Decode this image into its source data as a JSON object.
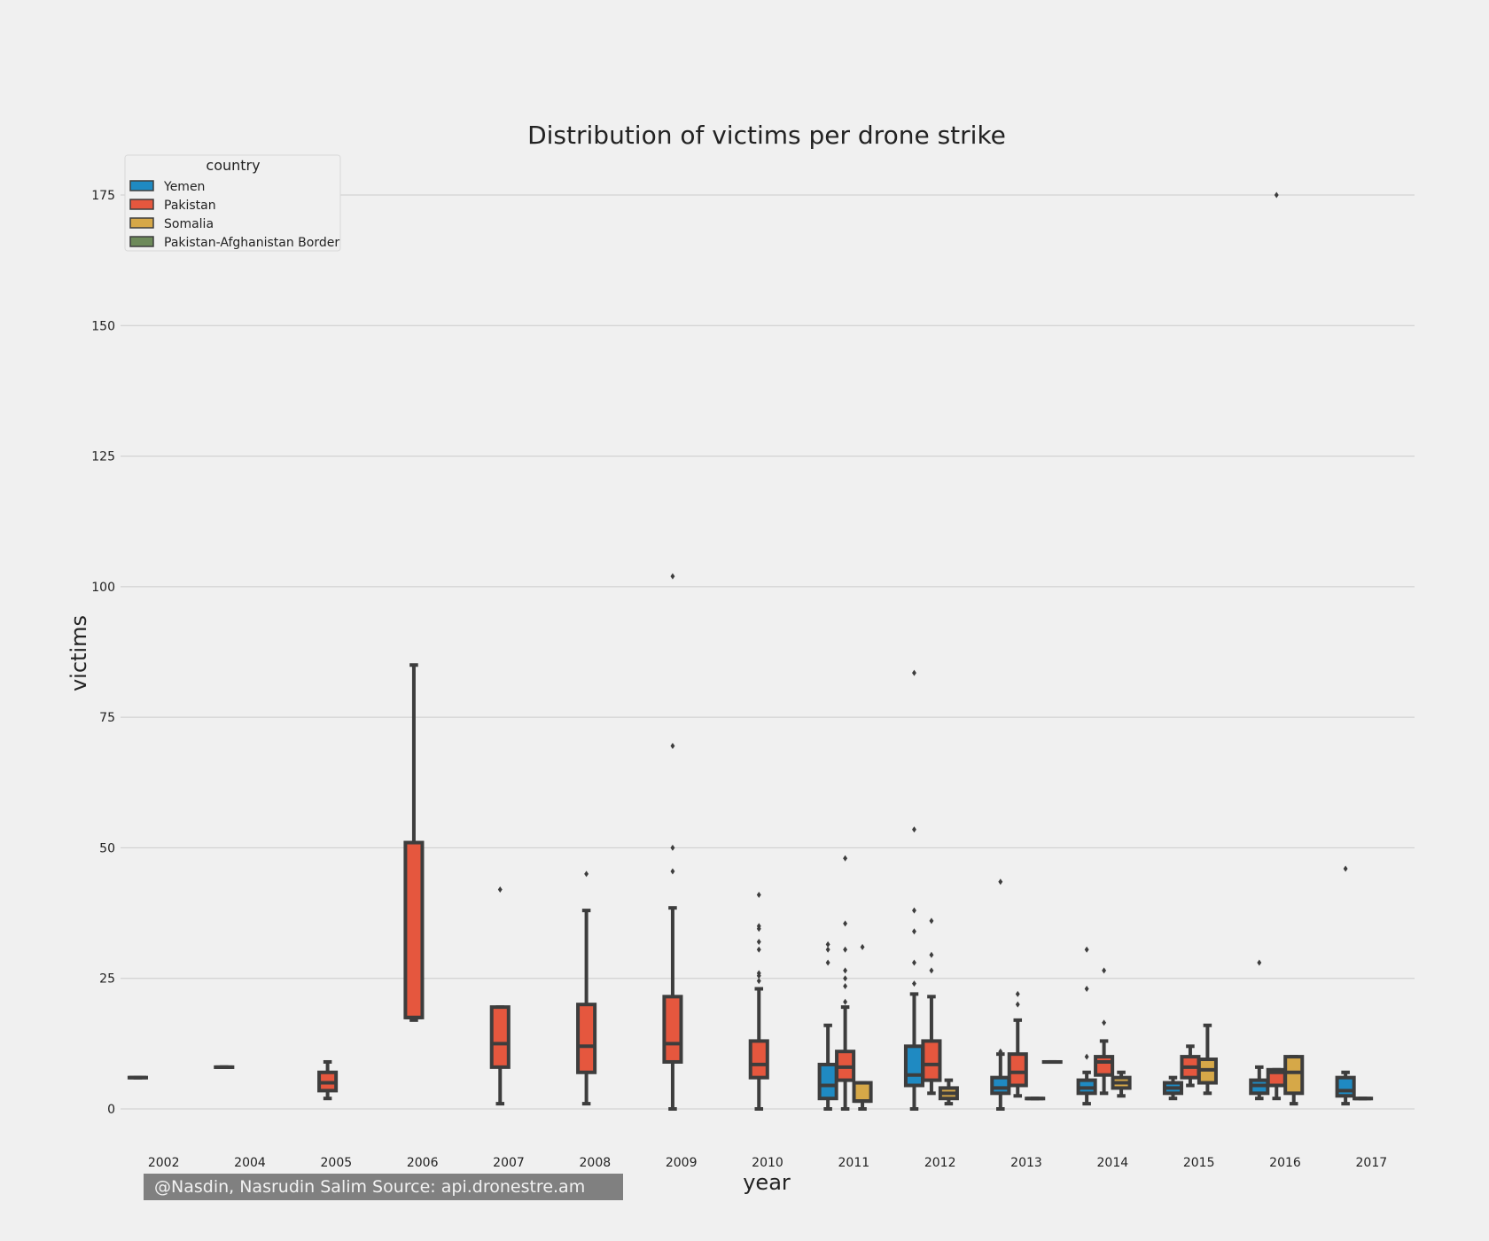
{
  "footer": {
    "credit": "@Nasdin, Nasrudin Salim  Source: api.dronestre.am"
  },
  "colors": {
    "background": "#f0f0f0",
    "grid": "#cbcbcb",
    "box_edge": "#3d3d3d",
    "Yemen": "#1f8ac2",
    "Pakistan": "#e5573e",
    "Somalia": "#d6a848",
    "Pakistan-Afghanistan Border": "#6d8a5a"
  },
  "chart_data": {
    "type": "box",
    "title": "Distribution of victims per drone strike",
    "xlabel": "year",
    "ylabel": "victims",
    "ylim": [
      -9,
      175
    ],
    "yticks": [
      0,
      25,
      50,
      75,
      100,
      125,
      150,
      175
    ],
    "grid": "horizontal",
    "legend_title": "country",
    "legend_position": "top-left",
    "categories": [
      "2002",
      "2004",
      "2005",
      "2006",
      "2007",
      "2008",
      "2009",
      "2010",
      "2011",
      "2012",
      "2013",
      "2014",
      "2015",
      "2016",
      "2017"
    ],
    "series_names": [
      "Yemen",
      "Pakistan",
      "Somalia",
      "Pakistan-Afghanistan Border"
    ],
    "boxes": [
      {
        "year": "2002",
        "country": "Yemen",
        "min": 6,
        "q1": 6,
        "median": 6,
        "q3": 6,
        "max": 6,
        "outliers": []
      },
      {
        "year": "2004",
        "country": "Yemen",
        "min": 8,
        "q1": 8,
        "median": 8,
        "q3": 8,
        "max": 8,
        "outliers": []
      },
      {
        "year": "2005",
        "country": "Pakistan",
        "min": 2,
        "q1": 3.5,
        "median": 5,
        "q3": 7,
        "max": 9,
        "outliers": []
      },
      {
        "year": "2006",
        "country": "Pakistan",
        "min": 17,
        "q1": 17.5,
        "median": 17.5,
        "q3": 51,
        "max": 85,
        "outliers": []
      },
      {
        "year": "2007",
        "country": "Pakistan",
        "min": 1,
        "q1": 8,
        "median": 12.5,
        "q3": 19.5,
        "max": 19.5,
        "outliers": [
          42
        ]
      },
      {
        "year": "2008",
        "country": "Pakistan",
        "min": 1,
        "q1": 7,
        "median": 12,
        "q3": 20,
        "max": 38,
        "outliers": [
          45
        ]
      },
      {
        "year": "2009",
        "country": "Pakistan",
        "min": 0,
        "q1": 9,
        "median": 12.5,
        "q3": 21.5,
        "max": 38.5,
        "outliers": [
          45.5,
          50,
          69.5,
          102
        ]
      },
      {
        "year": "2010",
        "country": "Pakistan",
        "min": 0,
        "q1": 6,
        "median": 8.5,
        "q3": 13,
        "max": 23,
        "outliers": [
          24.5,
          25.5,
          26,
          30.5,
          32,
          34.5,
          35,
          41
        ]
      },
      {
        "year": "2011",
        "country": "Yemen",
        "min": 0,
        "q1": 2,
        "median": 4.5,
        "q3": 8.5,
        "max": 16,
        "outliers": [
          28,
          30.5,
          31.5
        ]
      },
      {
        "year": "2011",
        "country": "Pakistan",
        "min": 0,
        "q1": 5.5,
        "median": 8,
        "q3": 11,
        "max": 19.5,
        "outliers": [
          20.5,
          23.5,
          25,
          26.5,
          30.5,
          35.5,
          48
        ]
      },
      {
        "year": "2011",
        "country": "Somalia",
        "min": 0,
        "q1": 1.5,
        "median": 1.5,
        "q3": 5,
        "max": 5,
        "outliers": [
          31
        ]
      },
      {
        "year": "2012",
        "country": "Yemen",
        "min": 0,
        "q1": 4.5,
        "median": 6.5,
        "q3": 12,
        "max": 22,
        "outliers": [
          24,
          28,
          34,
          38,
          53.5,
          83.5
        ]
      },
      {
        "year": "2012",
        "country": "Pakistan",
        "min": 3,
        "q1": 5.5,
        "median": 8.5,
        "q3": 13,
        "max": 21.5,
        "outliers": [
          26.5,
          29.5,
          36
        ]
      },
      {
        "year": "2012",
        "country": "Somalia",
        "min": 1,
        "q1": 2,
        "median": 3,
        "q3": 4,
        "max": 5.5,
        "outliers": []
      },
      {
        "year": "2013",
        "country": "Yemen",
        "min": 0,
        "q1": 3,
        "median": 4,
        "q3": 6,
        "max": 10.5,
        "outliers": [
          11,
          43.5
        ]
      },
      {
        "year": "2013",
        "country": "Pakistan",
        "min": 2.5,
        "q1": 4.5,
        "median": 7,
        "q3": 10.5,
        "max": 17,
        "outliers": [
          20,
          22
        ]
      },
      {
        "year": "2013",
        "country": "Somalia",
        "min": 2,
        "q1": 2,
        "median": 2,
        "q3": 2,
        "max": 2,
        "outliers": []
      },
      {
        "year": "2013",
        "country": "Pakistan-Afghanistan Border",
        "min": 9,
        "q1": 9,
        "median": 9,
        "q3": 9,
        "max": 9,
        "outliers": []
      },
      {
        "year": "2014",
        "country": "Yemen",
        "min": 1,
        "q1": 3,
        "median": 4,
        "q3": 5.5,
        "max": 7,
        "outliers": [
          10,
          23,
          30.5
        ]
      },
      {
        "year": "2014",
        "country": "Pakistan",
        "min": 3,
        "q1": 6.5,
        "median": 9,
        "q3": 10,
        "max": 13,
        "outliers": [
          16.5,
          26.5
        ]
      },
      {
        "year": "2014",
        "country": "Somalia",
        "min": 2.5,
        "q1": 4,
        "median": 5,
        "q3": 6,
        "max": 7,
        "outliers": []
      },
      {
        "year": "2015",
        "country": "Yemen",
        "min": 2,
        "q1": 3,
        "median": 4,
        "q3": 5,
        "max": 6,
        "outliers": []
      },
      {
        "year": "2015",
        "country": "Pakistan",
        "min": 4.5,
        "q1": 6,
        "median": 8,
        "q3": 10,
        "max": 12,
        "outliers": []
      },
      {
        "year": "2015",
        "country": "Somalia",
        "min": 3,
        "q1": 5,
        "median": 7.5,
        "q3": 9.5,
        "max": 16,
        "outliers": []
      },
      {
        "year": "2016",
        "country": "Yemen",
        "min": 2,
        "q1": 3,
        "median": 4.5,
        "q3": 5.5,
        "max": 8,
        "outliers": [
          28
        ]
      },
      {
        "year": "2016",
        "country": "Pakistan",
        "min": 2,
        "q1": 4.5,
        "median": 7,
        "q3": 7.5,
        "max": 7.5,
        "outliers": [
          175
        ]
      },
      {
        "year": "2016",
        "country": "Somalia",
        "min": 1,
        "q1": 3,
        "median": 7,
        "q3": 10,
        "max": 10,
        "outliers": []
      },
      {
        "year": "2017",
        "country": "Yemen",
        "min": 1,
        "q1": 2.5,
        "median": 3.5,
        "q3": 6,
        "max": 7,
        "outliers": [
          46
        ]
      },
      {
        "year": "2017",
        "country": "Pakistan",
        "min": 2,
        "q1": 2,
        "median": 2,
        "q3": 2,
        "max": 2,
        "outliers": []
      }
    ]
  }
}
